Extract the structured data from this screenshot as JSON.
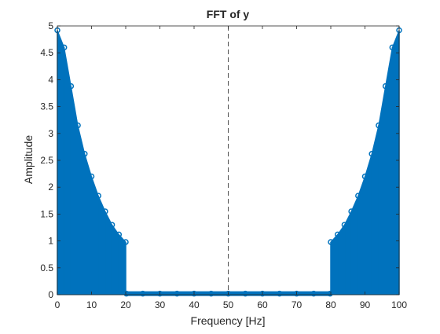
{
  "chart_data": {
    "type": "scatter",
    "title": "FFT of y",
    "xlabel": "Frequency [Hz]",
    "ylabel": "Amplitude",
    "xlim": [
      0,
      100
    ],
    "ylim": [
      0,
      5
    ],
    "xticks": [
      "0",
      "10",
      "20",
      "30",
      "40",
      "50",
      "60",
      "70",
      "80",
      "90",
      "100"
    ],
    "yticks": [
      "0",
      "0.5",
      "1",
      "1.5",
      "2",
      "2.5",
      "3",
      "3.5",
      "4",
      "4.5",
      "5"
    ],
    "grid": false,
    "marker": "circle",
    "stems": true,
    "series_color": "#0072BD",
    "reference_line": {
      "x": 50,
      "style": "dashed",
      "color": "#262626"
    },
    "series": [
      {
        "x": [
          0,
          2,
          4,
          6,
          8,
          10,
          12,
          14,
          16,
          18,
          20,
          20.2,
          25,
          30,
          35,
          40,
          45,
          50,
          55,
          60,
          65,
          70,
          75,
          79.8,
          80,
          82,
          84,
          86,
          88,
          90,
          92,
          94,
          96,
          98,
          100
        ],
        "y": [
          4.92,
          4.6,
          3.88,
          3.15,
          2.62,
          2.2,
          1.84,
          1.55,
          1.3,
          1.12,
          0.98,
          0.02,
          0.02,
          0.02,
          0.02,
          0.02,
          0.02,
          0.02,
          0.02,
          0.02,
          0.02,
          0.02,
          0.02,
          0.02,
          0.98,
          1.12,
          1.3,
          1.55,
          1.84,
          2.2,
          2.62,
          3.15,
          3.88,
          4.6,
          4.92
        ]
      }
    ]
  }
}
